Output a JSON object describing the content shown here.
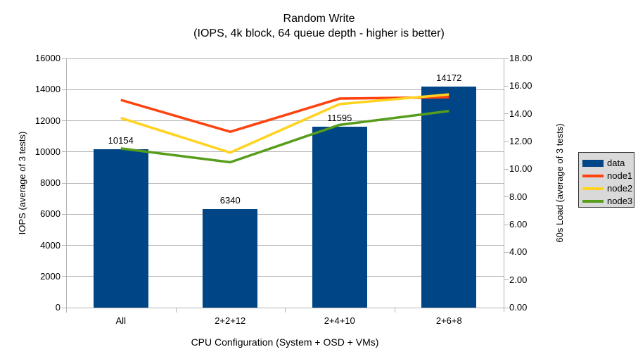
{
  "chart_data": {
    "type": "bar+line",
    "title": "Random Write",
    "subtitle": "(IOPS, 4k block, 64 queue depth - higher is better)",
    "categories": [
      "All",
      "2+2+12",
      "2+4+10",
      "2+6+8"
    ],
    "series": [
      {
        "name": "data",
        "type": "bar",
        "axis": "left",
        "color": "#004586",
        "values": [
          10154,
          6340,
          11595,
          14172
        ]
      },
      {
        "name": "node1",
        "type": "line",
        "axis": "right",
        "color": "#FF420E",
        "values": [
          15.0,
          12.7,
          15.1,
          15.2
        ]
      },
      {
        "name": "node2",
        "type": "line",
        "axis": "right",
        "color": "#FFD320",
        "values": [
          13.7,
          11.2,
          14.7,
          15.4
        ]
      },
      {
        "name": "node3",
        "type": "line",
        "axis": "right",
        "color": "#579D1C",
        "values": [
          11.5,
          10.5,
          13.2,
          14.2
        ]
      }
    ],
    "bar_value_labels": [
      "10154",
      "6340",
      "11595",
      "14172"
    ],
    "x_axis": {
      "label": "CPU Configuration (System + OSD + VMs)"
    },
    "left_axis": {
      "label": "IOPS (average of 3 tests)",
      "min": 0,
      "max": 16000,
      "step": 2000,
      "tick_labels": [
        "0",
        "2000",
        "4000",
        "6000",
        "8000",
        "10000",
        "12000",
        "14000",
        "16000"
      ]
    },
    "right_axis": {
      "label": "60s Load (average of 3 tests)",
      "min": 0,
      "max": 18,
      "step": 2,
      "tick_labels": [
        "0.00",
        "2.00",
        "4.00",
        "6.00",
        "8.00",
        "10.00",
        "12.00",
        "14.00",
        "16.00",
        "18.00"
      ]
    },
    "legend": {
      "position": "right",
      "entries": [
        "data",
        "node1",
        "node2",
        "node3"
      ]
    },
    "grid": "horizontal-left-axis",
    "colors": {
      "background": "#FFFFFF",
      "grid": "#B3B3B3",
      "axis": "#B3B3B3",
      "text": "#000000",
      "legend_bg": "#D9D9D9",
      "legend_border": "#333333",
      "bar": "#004586",
      "node1": "#FF420E",
      "node2": "#FFD320",
      "node3": "#579D1C"
    }
  }
}
